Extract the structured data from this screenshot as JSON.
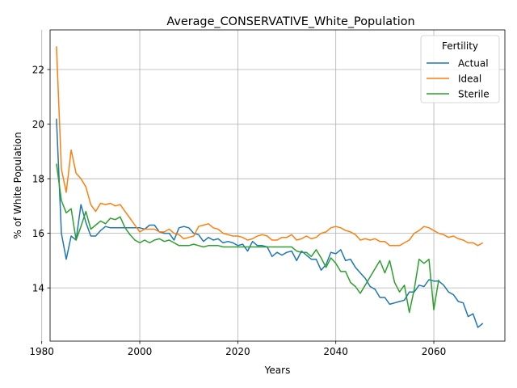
{
  "chart_data": {
    "type": "line",
    "title": "Average_CONSERVATIVE_White_Population",
    "xlabel": "Years",
    "ylabel": "% of White Population",
    "xlim": [
      1981.7,
      2074.5
    ],
    "ylim": [
      12.05,
      23.45
    ],
    "xticks": [
      1980,
      2000,
      2020,
      2040,
      2060
    ],
    "yticks": [
      14,
      16,
      18,
      20,
      22
    ],
    "grid": true,
    "legend": {
      "title": "Fertility",
      "position": "top-right"
    },
    "x": [
      1983,
      1984,
      1985,
      1986,
      1987,
      1988,
      1989,
      1990,
      1991,
      1992,
      1993,
      1994,
      1995,
      1996,
      1997,
      1998,
      1999,
      2000,
      2001,
      2002,
      2003,
      2004,
      2005,
      2006,
      2007,
      2008,
      2009,
      2010,
      2011,
      2012,
      2013,
      2014,
      2015,
      2016,
      2017,
      2018,
      2019,
      2020,
      2021,
      2022,
      2023,
      2024,
      2025,
      2026,
      2027,
      2028,
      2029,
      2030,
      2031,
      2032,
      2033,
      2034,
      2035,
      2036,
      2037,
      2038,
      2039,
      2040,
      2041,
      2042,
      2043,
      2044,
      2045,
      2046,
      2047,
      2048,
      2049,
      2050,
      2051,
      2052,
      2053,
      2054,
      2055,
      2056,
      2057,
      2058,
      2059,
      2060,
      2061,
      2062,
      2063,
      2064,
      2065,
      2066,
      2067,
      2068,
      2069,
      2070
    ],
    "series": [
      {
        "name": "Actual",
        "color": "#1f77b4",
        "values": [
          20.2,
          16.0,
          15.05,
          15.9,
          15.75,
          17.05,
          16.4,
          15.9,
          15.9,
          16.1,
          16.25,
          16.2,
          16.2,
          16.2,
          16.2,
          16.2,
          16.2,
          16.2,
          16.15,
          16.3,
          16.3,
          16.05,
          16.0,
          16.0,
          15.75,
          16.2,
          16.25,
          16.2,
          16.0,
          15.95,
          15.7,
          15.85,
          15.75,
          15.8,
          15.65,
          15.7,
          15.65,
          15.55,
          15.6,
          15.35,
          15.7,
          15.55,
          15.55,
          15.5,
          15.15,
          15.3,
          15.2,
          15.3,
          15.35,
          15.0,
          15.35,
          15.2,
          15.05,
          15.05,
          14.65,
          14.85,
          15.3,
          15.25,
          15.4,
          15.0,
          15.05,
          14.75,
          14.55,
          14.35,
          14.05,
          13.95,
          13.65,
          13.65,
          13.4,
          13.45,
          13.5,
          13.55,
          13.85,
          13.85,
          14.1,
          14.05,
          14.3,
          14.25,
          14.25,
          14.1,
          13.85,
          13.75,
          13.5,
          13.45,
          12.95,
          13.05,
          12.55,
          12.7
        ]
      },
      {
        "name": "Ideal",
        "color": "#ff7f0e",
        "values": [
          22.85,
          18.35,
          17.5,
          19.05,
          18.2,
          18.0,
          17.7,
          17.05,
          16.8,
          17.1,
          17.05,
          17.1,
          17.0,
          17.05,
          16.8,
          16.55,
          16.3,
          16.05,
          16.15,
          16.15,
          16.15,
          16.05,
          16.05,
          16.15,
          16.0,
          15.95,
          15.8,
          15.85,
          15.9,
          16.25,
          16.3,
          16.35,
          16.2,
          16.15,
          16.0,
          15.95,
          15.9,
          15.9,
          15.85,
          15.75,
          15.8,
          15.9,
          15.95,
          15.9,
          15.75,
          15.75,
          15.85,
          15.85,
          15.95,
          15.75,
          15.8,
          15.9,
          15.8,
          15.85,
          16.0,
          16.05,
          16.2,
          16.25,
          16.2,
          16.1,
          16.05,
          15.95,
          15.75,
          15.8,
          15.75,
          15.8,
          15.7,
          15.7,
          15.55,
          15.55,
          15.55,
          15.65,
          15.75,
          16.0,
          16.1,
          16.25,
          16.2,
          16.1,
          16.0,
          15.95,
          15.85,
          15.9,
          15.8,
          15.75,
          15.65,
          15.65,
          15.55,
          15.65
        ]
      },
      {
        "name": "Sterile",
        "color": "#2ca02c",
        "values": [
          18.55,
          17.2,
          16.75,
          16.9,
          15.75,
          16.25,
          16.8,
          16.15,
          16.3,
          16.45,
          16.35,
          16.55,
          16.5,
          16.6,
          16.2,
          15.95,
          15.75,
          15.65,
          15.75,
          15.65,
          15.75,
          15.8,
          15.7,
          15.75,
          15.65,
          15.55,
          15.55,
          15.55,
          15.6,
          15.55,
          15.5,
          15.55,
          15.55,
          15.55,
          15.5,
          15.5,
          15.5,
          15.5,
          15.5,
          15.5,
          15.5,
          15.5,
          15.5,
          15.5,
          15.5,
          15.5,
          15.5,
          15.5,
          15.5,
          15.35,
          15.3,
          15.3,
          15.15,
          15.4,
          15.1,
          14.75,
          15.1,
          14.9,
          14.6,
          14.6,
          14.2,
          14.05,
          13.8,
          14.1,
          14.4,
          14.7,
          15.0,
          14.55,
          15.0,
          14.2,
          13.85,
          14.1,
          13.1,
          13.95,
          15.05,
          14.9,
          15.05,
          13.2,
          14.3,
          null,
          null,
          null,
          null,
          null,
          null,
          null,
          null,
          null
        ]
      }
    ]
  }
}
